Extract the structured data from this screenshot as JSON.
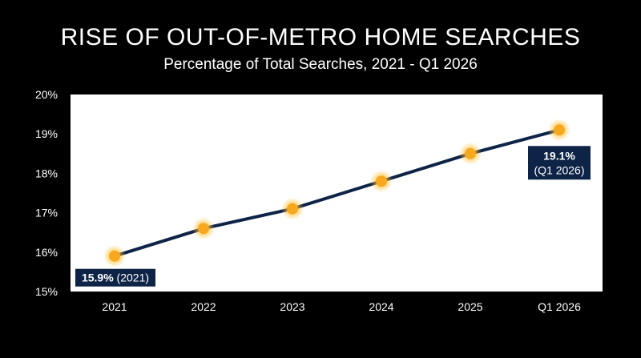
{
  "chart_data": {
    "type": "line",
    "title": "RISE OF OUT-OF-METRO HOME SEARCHES",
    "subtitle": "Percentage of Total Searches, 2021 - Q1 2026",
    "categories": [
      "2021",
      "2022",
      "2023",
      "2024",
      "2025",
      "Q1 2026"
    ],
    "values": [
      15.9,
      16.6,
      17.1,
      17.8,
      18.5,
      19.1
    ],
    "ylim": [
      15,
      20
    ],
    "yticks": [
      "15%",
      "16%",
      "17%",
      "18%",
      "19%",
      "20%"
    ],
    "grid": false,
    "line_color": "#0e2446",
    "point_color": "#f8a81e",
    "plot_background": "#ffffff",
    "callout_fill": "#0e2446",
    "callouts": [
      {
        "index": 0,
        "value_text": "15.9%",
        "label_text": "(2021)"
      },
      {
        "index": 5,
        "value_text": "19.1%",
        "label_text": "(Q1 2026)"
      }
    ]
  }
}
